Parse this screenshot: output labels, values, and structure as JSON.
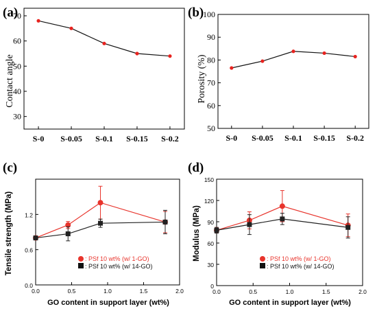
{
  "figure": {
    "panel_labels": [
      "(a)",
      "(b)",
      "(c)",
      "(d)"
    ]
  },
  "chart_data": [
    {
      "panel": "(a)",
      "type": "line",
      "title": "",
      "xlabel": "",
      "ylabel": "Contact angle",
      "categories": [
        "S-0",
        "S-0.05",
        "S-0.1",
        "S-0.15",
        "S-0.2"
      ],
      "series": [
        {
          "values": [
            68,
            65,
            59,
            55,
            54
          ],
          "color": "#e8231f",
          "line_color": "#111111"
        }
      ],
      "ylim": [
        25,
        73
      ],
      "yticks": [
        30,
        40,
        50,
        60,
        70
      ],
      "grid": false
    },
    {
      "panel": "(b)",
      "type": "line",
      "title": "",
      "xlabel": "",
      "ylabel": "Porosity (%)",
      "categories": [
        "S-0",
        "S-0.05",
        "S-0.1",
        "S-0.15",
        "S-0.2"
      ],
      "series": [
        {
          "values": [
            76.5,
            79.5,
            83.8,
            83.0,
            81.5
          ],
          "color": "#e8231f",
          "line_color": "#111111"
        }
      ],
      "ylim": [
        50,
        100
      ],
      "yticks": [
        50,
        60,
        70,
        80,
        90,
        100
      ],
      "grid": false
    },
    {
      "panel": "(c)",
      "type": "line",
      "title": "",
      "xlabel": "GO content in support layer (wt%)",
      "ylabel": "Tensile strength (MPa)",
      "xlim": [
        0.0,
        2.0
      ],
      "xticks": [
        "0.0",
        "0.5",
        "1.0",
        "1.5",
        "2.0"
      ],
      "ylim": [
        0.0,
        1.8
      ],
      "yticks": [
        "0.0",
        "0.6",
        "1.2"
      ],
      "legend_position": "bottom-left",
      "series": [
        {
          "name": ": PSf 10 wt% (w/ 1-GO)",
          "marker": "circle",
          "color": "#e8342c",
          "x": [
            0.0,
            0.45,
            0.9,
            1.8
          ],
          "values": [
            0.8,
            1.02,
            1.4,
            1.07
          ],
          "err": [
            0.03,
            0.06,
            0.28,
            0.18
          ]
        },
        {
          "name": ": PSf 10 wt% (w/ 14-GO)",
          "marker": "square",
          "color": "#222222",
          "x": [
            0.0,
            0.45,
            0.9,
            1.8
          ],
          "values": [
            0.8,
            0.87,
            1.05,
            1.07
          ],
          "err": [
            0.03,
            0.12,
            0.07,
            0.2
          ]
        }
      ],
      "grid": false
    },
    {
      "panel": "(d)",
      "type": "line",
      "title": "",
      "xlabel": "GO content in support layer (wt%)",
      "ylabel": "Modulus (MPa)",
      "xlim": [
        0.0,
        2.0
      ],
      "xticks": [
        "0.0",
        "0.5",
        "1.0",
        "1.5",
        "2.0"
      ],
      "ylim": [
        0,
        150
      ],
      "yticks": [
        "0",
        "30",
        "60",
        "90",
        "120",
        "150"
      ],
      "legend_position": "bottom-left",
      "series": [
        {
          "name": ": PSf 10 wt% (w/ 1-GO)",
          "marker": "circle",
          "color": "#e8342c",
          "x": [
            0.0,
            0.45,
            0.9,
            1.8
          ],
          "values": [
            78,
            92,
            112,
            85
          ],
          "err": [
            4,
            12,
            22,
            16
          ]
        },
        {
          "name": ": PSf 10 wt% (w/ 14-GO)",
          "marker": "square",
          "color": "#222222",
          "x": [
            0.0,
            0.45,
            0.9,
            1.8
          ],
          "values": [
            78,
            86,
            94,
            82
          ],
          "err": [
            4,
            14,
            8,
            15
          ]
        }
      ],
      "grid": false
    }
  ]
}
